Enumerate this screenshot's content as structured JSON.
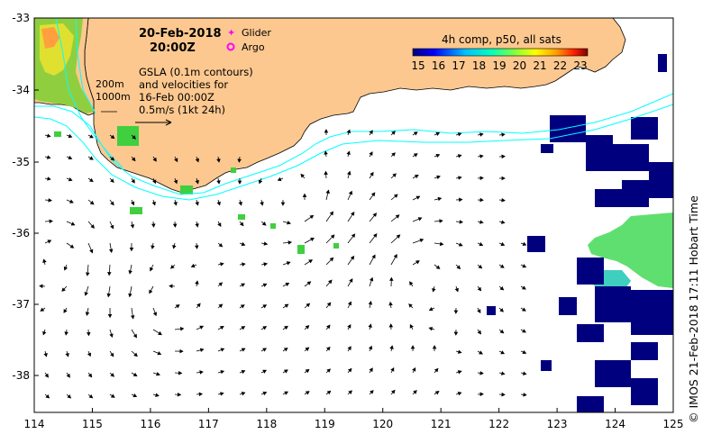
{
  "title": {
    "date": "20-Feb-2018",
    "time": "20:00Z"
  },
  "legend": {
    "glider_label": "Glider",
    "argo_label": "Argo",
    "glider_color": "#ff00ff",
    "argo_color": "#ff00ff"
  },
  "colorbar": {
    "title": "4h comp, p50, all sats",
    "ticks": [
      "15",
      "16",
      "17",
      "18",
      "19",
      "20",
      "21",
      "22",
      "23"
    ],
    "colors": [
      "#00007f",
      "#0000ff",
      "#007fff",
      "#00ffff",
      "#7fff7f",
      "#ffff00",
      "#ff7f00",
      "#ff0000",
      "#7f0000"
    ]
  },
  "gsla_note": {
    "line1": "GSLA (0.1m contours)",
    "line2": "and velocities for",
    "line3": "16-Feb 00:00Z",
    "line4": "0.5m/s (1kt 24h)"
  },
  "isobaths": {
    "label_200": "200m",
    "label_1000": "1000m"
  },
  "axes": {
    "x_ticks": [
      "114",
      "115",
      "116",
      "117",
      "118",
      "119",
      "120",
      "121",
      "122",
      "123",
      "124",
      "125"
    ],
    "y_ticks": [
      "-33",
      "-34",
      "-35",
      "-36",
      "-37",
      "-38"
    ]
  },
  "credit": "© IMOS 21-Feb-2018 17:11 Hobart Time",
  "colors": {
    "land": "#fcc88f",
    "isobath": "#00ffff",
    "frame": "#000000"
  }
}
